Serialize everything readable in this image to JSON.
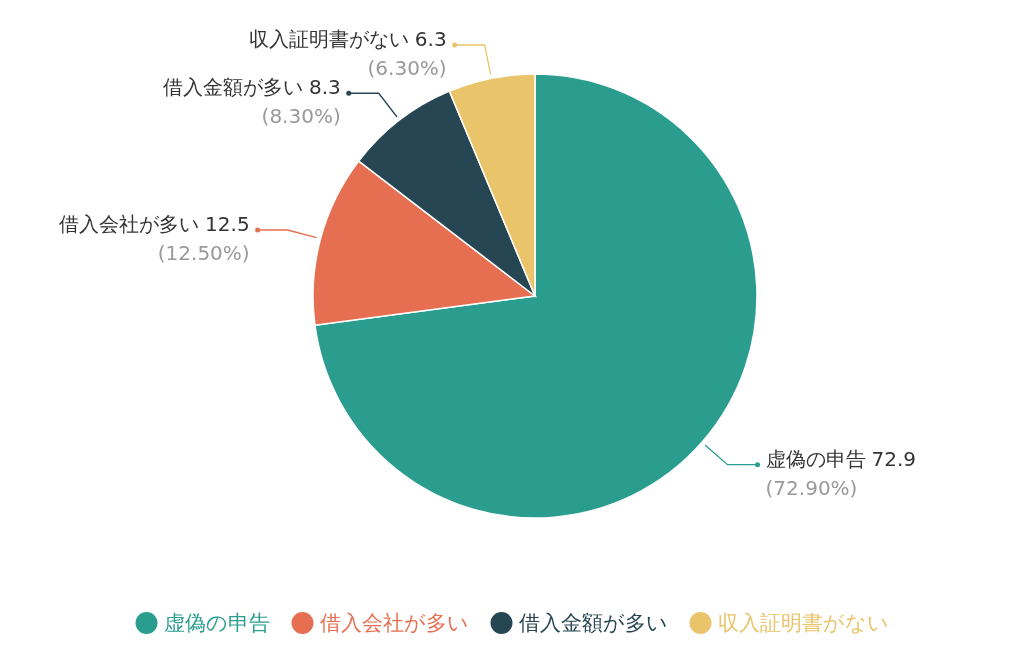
{
  "chart_data": {
    "type": "pie",
    "categories": [
      "虚偽の申告",
      "借入会社が多い",
      "借入金額が多い",
      "収入証明書がない"
    ],
    "values": [
      72.9,
      12.5,
      8.3,
      6.3
    ],
    "colors": [
      "#2a9d8f",
      "#e76f51",
      "#264653",
      "#e9c46a"
    ],
    "value_labels": [
      "72.9 (72.90%)",
      "12.5 (12.50%)",
      "8.3 (8.30%)",
      "6.3 (6.30%)"
    ],
    "legend": "bottom"
  }
}
